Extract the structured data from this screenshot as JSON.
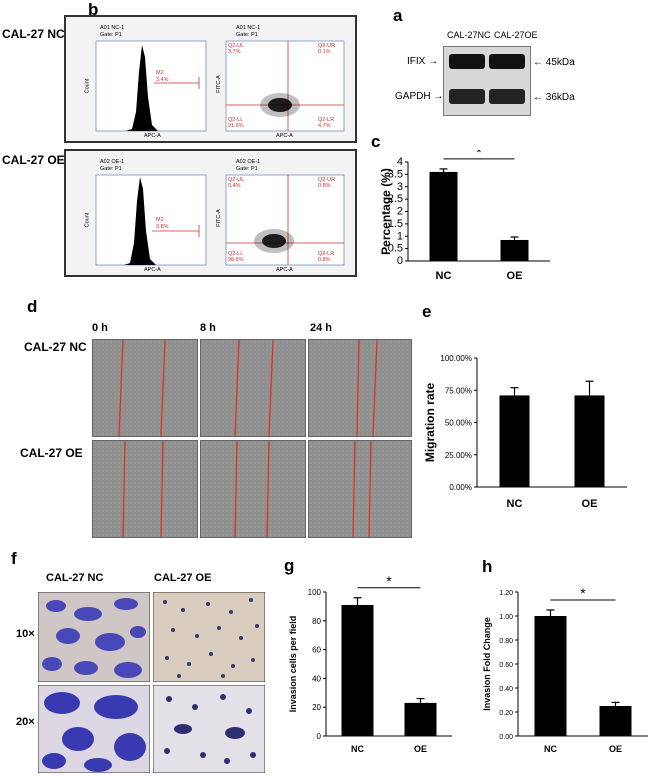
{
  "panels": {
    "a": "a",
    "b": "b",
    "c": "c",
    "d": "d",
    "e": "e",
    "f": "f",
    "g": "g",
    "h": "h"
  },
  "panel_b": {
    "row_labels": [
      "CAL-27 NC",
      "CAL-27 OE"
    ],
    "nc": {
      "hist_title": "A01 NC-1",
      "hist_gate": "Gate: P1",
      "hist_gate_label": "M2",
      "hist_gate_pct": "3.4%",
      "scatter_title": "A01 NC-1",
      "scatter_gate": "Gate: P1",
      "q_ul": "Q2-UL",
      "q_ul_pct": "3.7%",
      "q_ur": "Q2-UR",
      "q_ur_pct": "0.1%",
      "q_ll": "Q2-LL",
      "q_ll_pct": "91.6%",
      "q_lr": "Q2-LR",
      "q_lr_pct": "4.7%"
    },
    "oe": {
      "hist_title": "A02 OE-1",
      "hist_gate": "Gate: P1",
      "hist_gate_label": "M2",
      "hist_gate_pct": "0.8%",
      "scatter_title": "A02 OE-1",
      "scatter_gate": "Gate: P1",
      "q_ul": "Q2-UL",
      "q_ul_pct": "0.4%",
      "q_ur": "Q2-UR",
      "q_ur_pct": "0.8%",
      "q_ll": "Q2-LL",
      "q_ll_pct": "98.8%",
      "q_lr": "Q2-LR",
      "q_lr_pct": "0.8%"
    },
    "hist_xlabel": "APC-A",
    "hist_ylabel": "Count",
    "scatter_xlabel": "APC-A",
    "scatter_ylabel": "FITC-A"
  },
  "panel_a": {
    "col_labels": [
      "CAL-27NC",
      "CAL-27OE"
    ],
    "rows": [
      {
        "name": "IFIX",
        "size": "45kDa"
      },
      {
        "name": "GAPDH",
        "size": "36kDa"
      }
    ]
  },
  "panel_d": {
    "timepoints": [
      "0 h",
      "8 h",
      "24 h"
    ],
    "row_labels": [
      "CAL-27 NC",
      "CAL-27 OE"
    ]
  },
  "panel_f": {
    "col_labels": [
      "CAL-27 NC",
      "CAL-27 OE"
    ],
    "row_labels": [
      "10×",
      "20×"
    ]
  },
  "chart_data": [
    {
      "id": "c",
      "type": "bar",
      "categories": [
        "NC",
        "OE"
      ],
      "values": [
        3.6,
        0.85
      ],
      "errors": [
        0.12,
        0.12
      ],
      "ylabel": "Percentage (%)",
      "ylim": [
        0,
        4
      ],
      "yticks": [
        "0",
        "0.5",
        "1",
        "1.5",
        "2",
        "2.5",
        "3",
        "3.5",
        "4"
      ],
      "significance": "*"
    },
    {
      "id": "e",
      "type": "bar",
      "categories": [
        "NC",
        "OE"
      ],
      "values": [
        71,
        71
      ],
      "errors": [
        6,
        11
      ],
      "ylabel": "Migration rate",
      "ylim": [
        0,
        100
      ],
      "yticks": [
        "0.00%",
        "25.00%",
        "50.00%",
        "75.00%",
        "100.00%"
      ]
    },
    {
      "id": "g",
      "type": "bar",
      "categories": [
        "NC",
        "OE"
      ],
      "values": [
        91,
        23
      ],
      "errors": [
        5,
        3
      ],
      "ylabel": "Invasion cells per field",
      "ylim": [
        0,
        100
      ],
      "yticks": [
        "0",
        "20",
        "40",
        "60",
        "80",
        "100"
      ],
      "significance": "*"
    },
    {
      "id": "h",
      "type": "bar",
      "categories": [
        "NC",
        "OE"
      ],
      "values": [
        1.0,
        0.25
      ],
      "errors": [
        0.05,
        0.03
      ],
      "ylabel": "Invasion Fold Change",
      "ylim": [
        0,
        1.2
      ],
      "yticks": [
        "0.00",
        "0.20",
        "0.40",
        "0.60",
        "0.80",
        "1.00",
        "1.20"
      ],
      "significance": "*"
    }
  ]
}
